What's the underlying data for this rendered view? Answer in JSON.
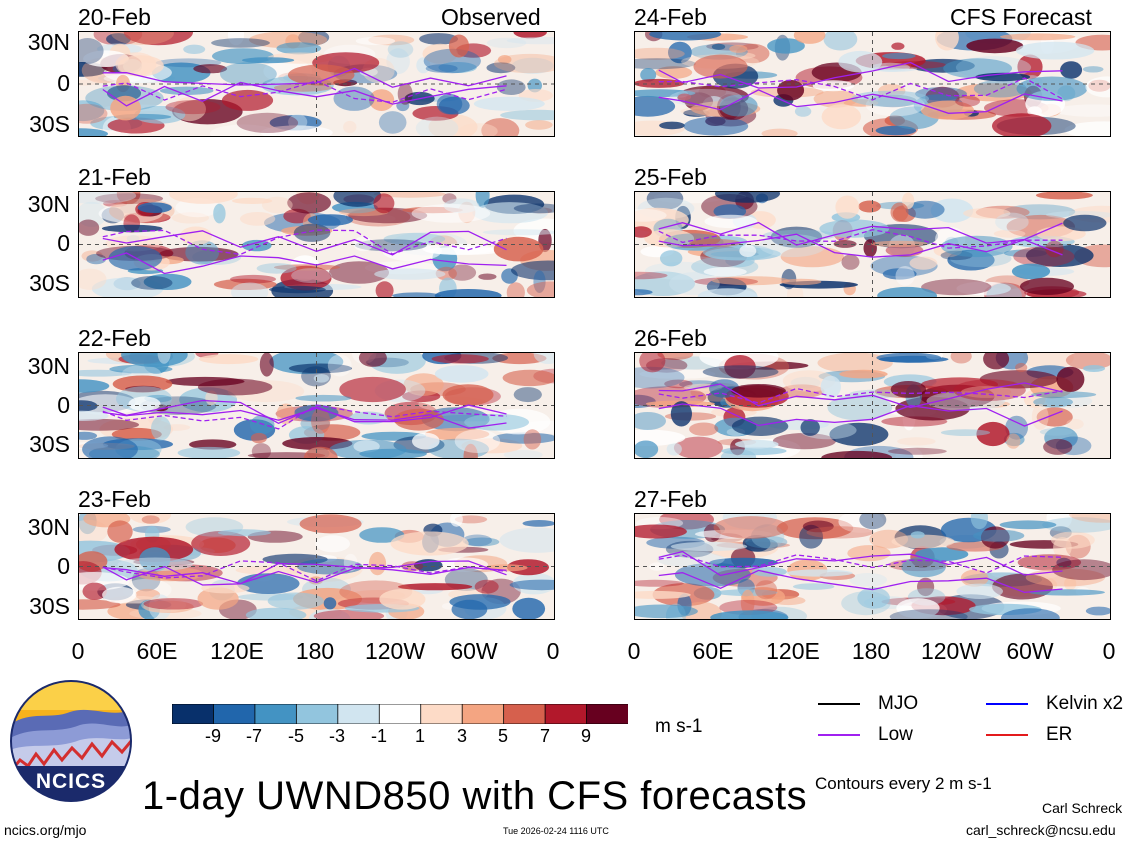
{
  "panel_headers": {
    "observed_label": "Observed",
    "forecast_label": "CFS Forecast"
  },
  "panels": [
    {
      "date": "20-Feb",
      "source": "observed"
    },
    {
      "date": "21-Feb",
      "source": "observed"
    },
    {
      "date": "22-Feb",
      "source": "observed"
    },
    {
      "date": "23-Feb",
      "source": "observed"
    },
    {
      "date": "24-Feb",
      "source": "forecast"
    },
    {
      "date": "25-Feb",
      "source": "forecast"
    },
    {
      "date": "26-Feb",
      "source": "forecast"
    },
    {
      "date": "27-Feb",
      "source": "forecast"
    }
  ],
  "latitude_labels": [
    "30N",
    "0",
    "30S"
  ],
  "longitude_labels": [
    "0",
    "60E",
    "120E",
    "180",
    "120W",
    "60W",
    "0"
  ],
  "colorbar": {
    "tick_labels": [
      "-9",
      "-7",
      "-5",
      "-3",
      "-1",
      "1",
      "3",
      "5",
      "7",
      "9"
    ],
    "colors": [
      "#08306b",
      "#2166ac",
      "#4393c3",
      "#92c5de",
      "#d1e5f0",
      "#ffffff",
      "#fddbc7",
      "#f4a582",
      "#d6604d",
      "#b2182b",
      "#67001f"
    ],
    "units": "m s-1"
  },
  "legend": {
    "mjo": {
      "label": "MJO",
      "color": "#000000"
    },
    "low": {
      "label": "Low",
      "color": "#a020f0"
    },
    "kelvin": {
      "label": "Kelvin x2",
      "color": "#0000ff"
    },
    "er": {
      "label": "ER",
      "color": "#e31a1c"
    }
  },
  "contour_note": "Contours every 2 m s-1",
  "title": "1-day UWND850 with CFS forecasts",
  "author_name": "Carl Schreck",
  "author_email": "carl_schreck@ncsu.edu",
  "site_url": "ncics.org/mjo",
  "timestamp": "Tue 2026-02-24 1116 UTC",
  "logo": {
    "text": "NCICS"
  }
}
